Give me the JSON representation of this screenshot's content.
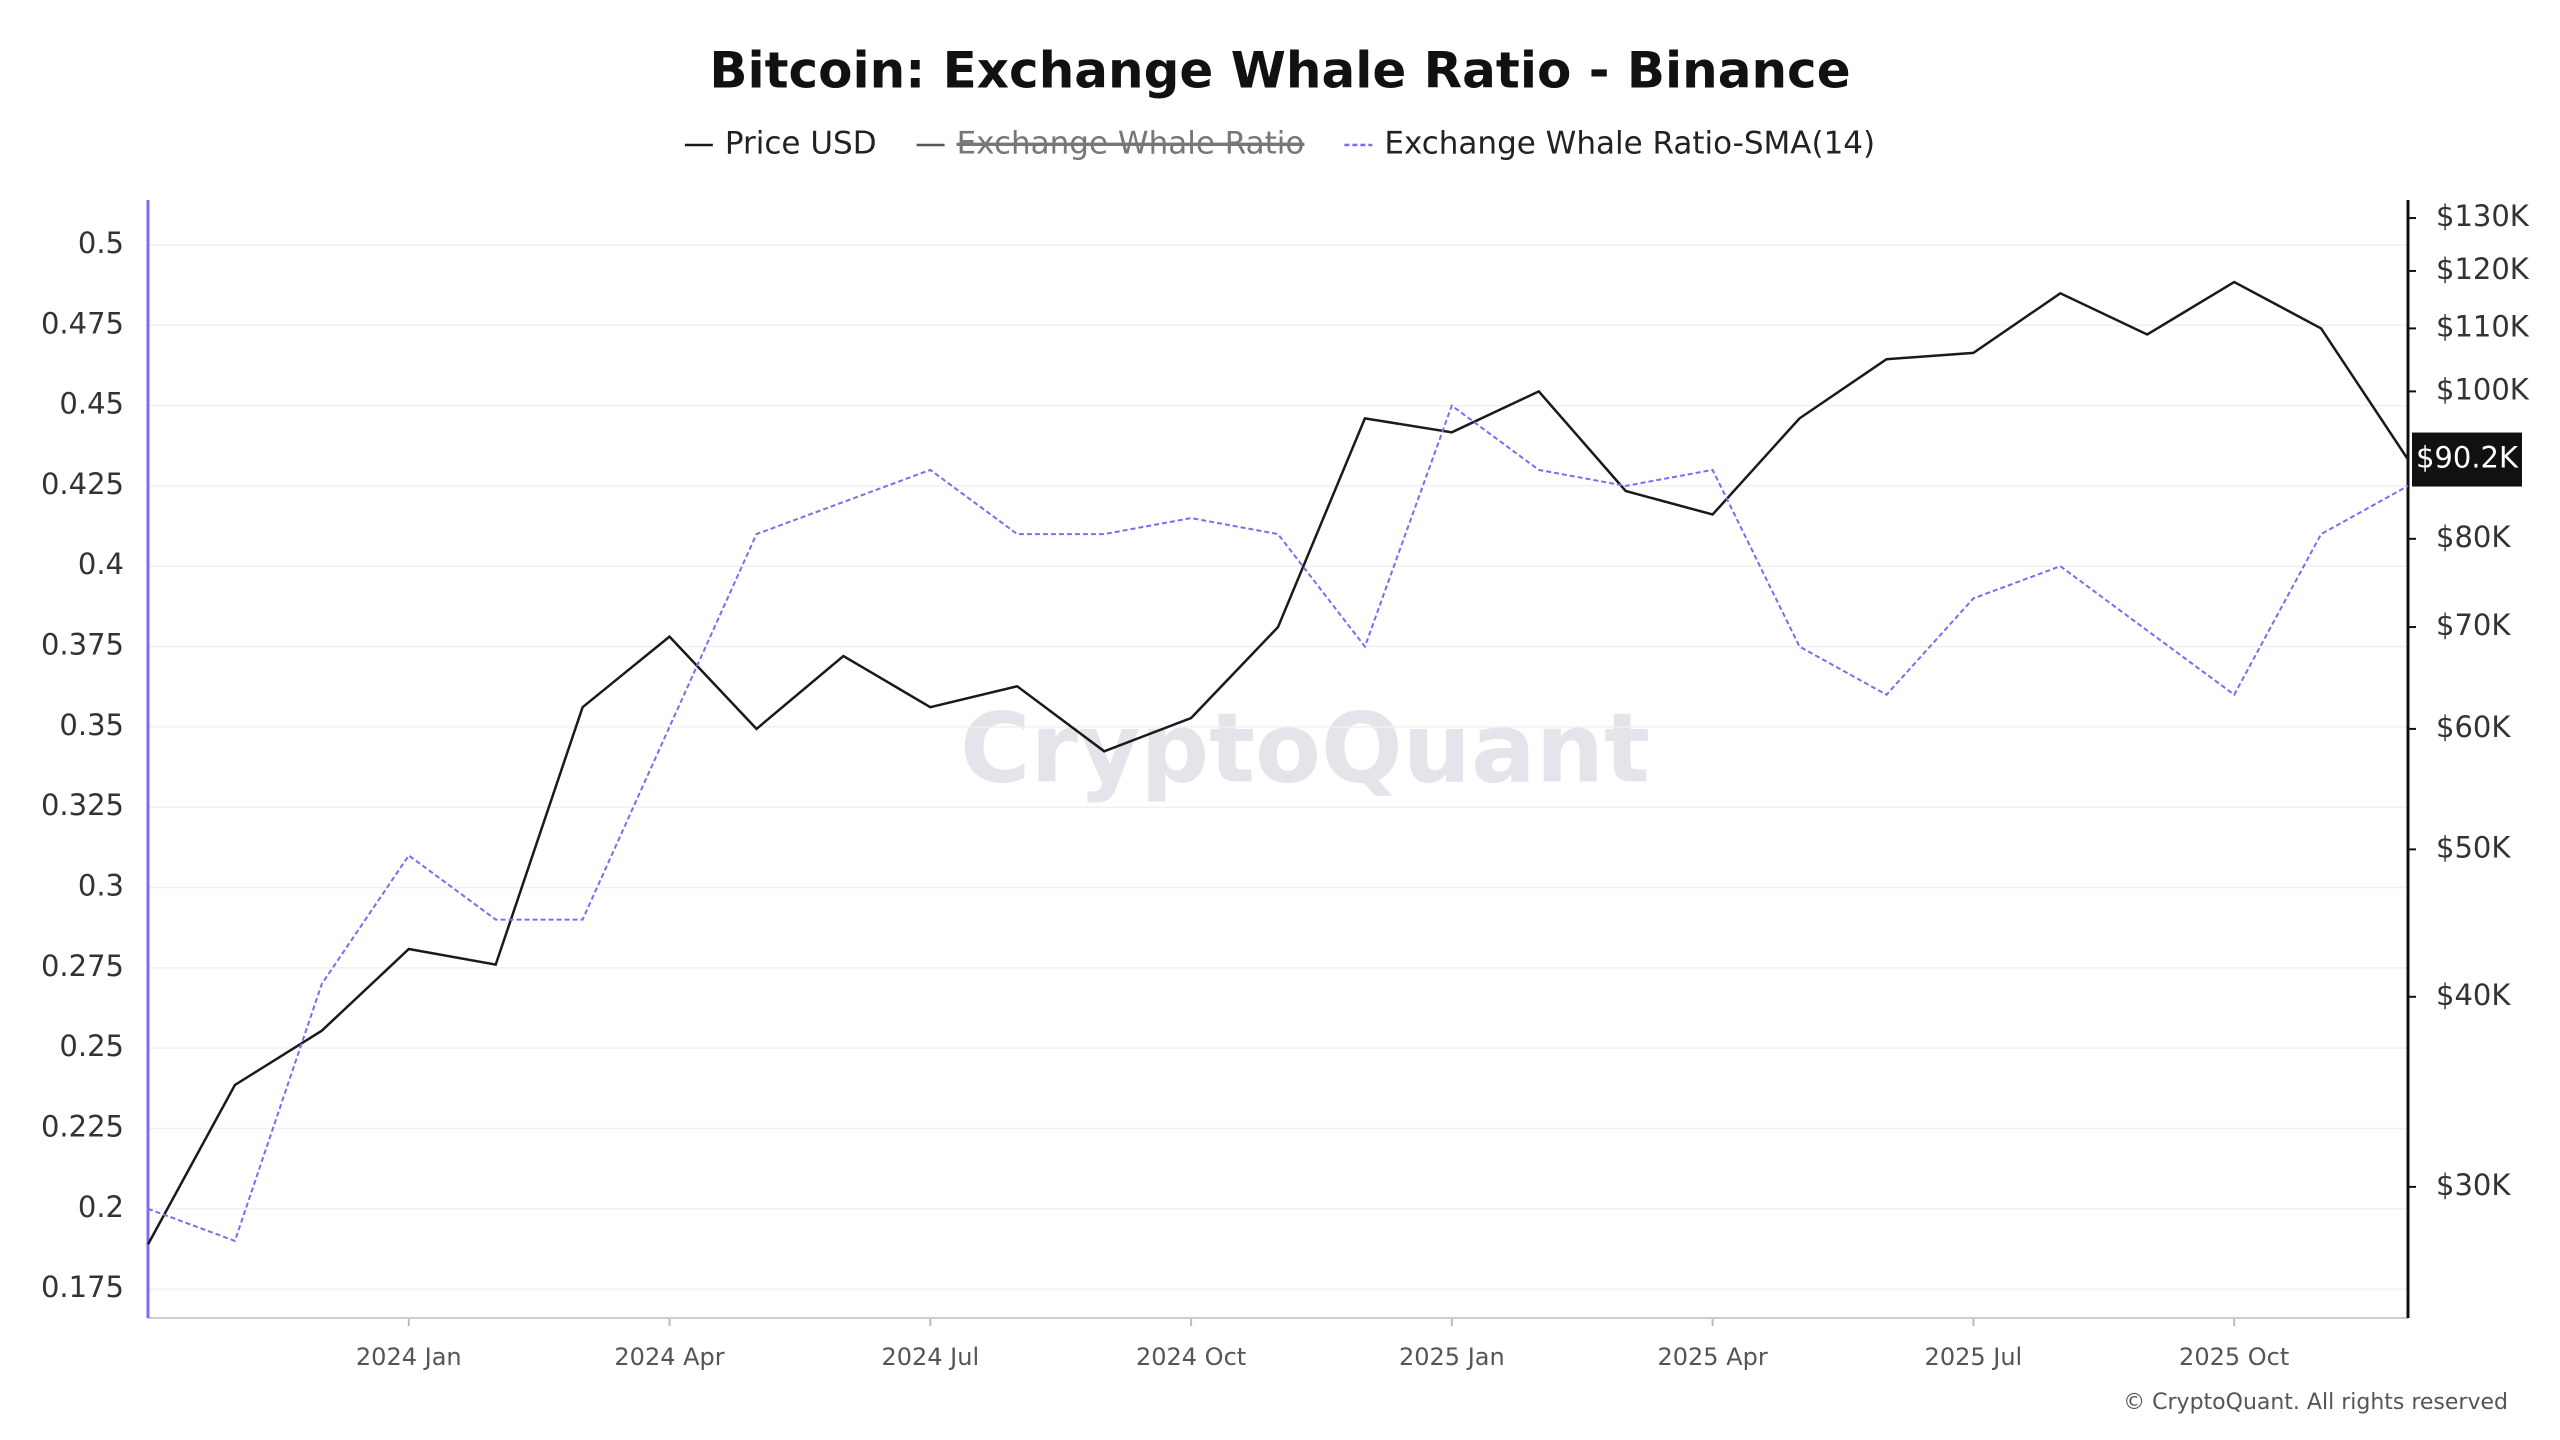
{
  "chart_data": {
    "type": "line",
    "title": "Bitcoin: Exchange Whale Ratio - Binance",
    "x": [
      "2023-10",
      "2023-11",
      "2023-12",
      "2024-01",
      "2024-02",
      "2024-03",
      "2024-04",
      "2024-05",
      "2024-06",
      "2024-07",
      "2024-08",
      "2024-09",
      "2024-10",
      "2024-11",
      "2024-12",
      "2025-01",
      "2025-02",
      "2025-03",
      "2025-04",
      "2025-05",
      "2025-06",
      "2025-07",
      "2025-08",
      "2025-09",
      "2025-10",
      "2025-11",
      "2025-12"
    ],
    "xlim": [
      "2023-10",
      "2025-12"
    ],
    "xticks": [
      {
        "value": "2024-01",
        "label": "2024 Jan"
      },
      {
        "value": "2024-04",
        "label": "2024 Apr"
      },
      {
        "value": "2024-07",
        "label": "2024 Jul"
      },
      {
        "value": "2024-10",
        "label": "2024 Oct"
      },
      {
        "value": "2025-01",
        "label": "2025 Jan"
      },
      {
        "value": "2025-04",
        "label": "2025 Apr"
      },
      {
        "value": "2025-07",
        "label": "2025 Jul"
      },
      {
        "value": "2025-10",
        "label": "2025 Oct"
      }
    ],
    "ylim": [
      0.166,
      0.514
    ],
    "yticks": [
      0.175,
      0.2,
      0.225,
      0.25,
      0.275,
      0.3,
      0.325,
      0.35,
      0.375,
      0.4,
      0.425,
      0.45,
      0.475,
      0.5
    ],
    "y2lim": [
      24600,
      133600
    ],
    "y2log": true,
    "y2ticks": [
      {
        "value": 30000,
        "label": "$30K"
      },
      {
        "value": 40000,
        "label": "$40K"
      },
      {
        "value": 50000,
        "label": "$50K"
      },
      {
        "value": 60000,
        "label": "$60K"
      },
      {
        "value": 70000,
        "label": "$70K"
      },
      {
        "value": 80000,
        "label": "$80K"
      },
      {
        "value": 100000,
        "label": "$100K"
      },
      {
        "value": 110000,
        "label": "$110K"
      },
      {
        "value": 120000,
        "label": "$120K"
      },
      {
        "value": 130000,
        "label": "$130K"
      }
    ],
    "grid": true,
    "series": [
      {
        "name": "Price USD",
        "color": "#1a1a1a",
        "axis": "y2",
        "dashed": false,
        "values": [
          27500,
          35000,
          38000,
          43000,
          42000,
          62000,
          69000,
          60000,
          67000,
          62000,
          64000,
          58000,
          61000,
          70000,
          96000,
          94000,
          100000,
          86000,
          83000,
          96000,
          105000,
          106000,
          116000,
          109000,
          118000,
          110000,
          90200
        ]
      },
      {
        "name": "Exchange Whale Ratio",
        "color": "#555555",
        "hidden": true
      },
      {
        "name": "Exchange Whale Ratio-SMA(14)",
        "color": "#7b6cf0",
        "dashed": true,
        "values": [
          0.2,
          0.19,
          0.27,
          0.31,
          0.29,
          0.29,
          0.35,
          0.41,
          0.42,
          0.43,
          0.41,
          0.41,
          0.415,
          0.41,
          0.375,
          0.45,
          0.43,
          0.425,
          0.43,
          0.375,
          0.36,
          0.39,
          0.4,
          0.38,
          0.36,
          0.41,
          0.425
        ]
      }
    ],
    "last_value": {
      "value": 90200,
      "label": "$90.2K"
    },
    "watermark": "CryptoQuant",
    "footer": "© CryptoQuant. All rights reserved"
  }
}
